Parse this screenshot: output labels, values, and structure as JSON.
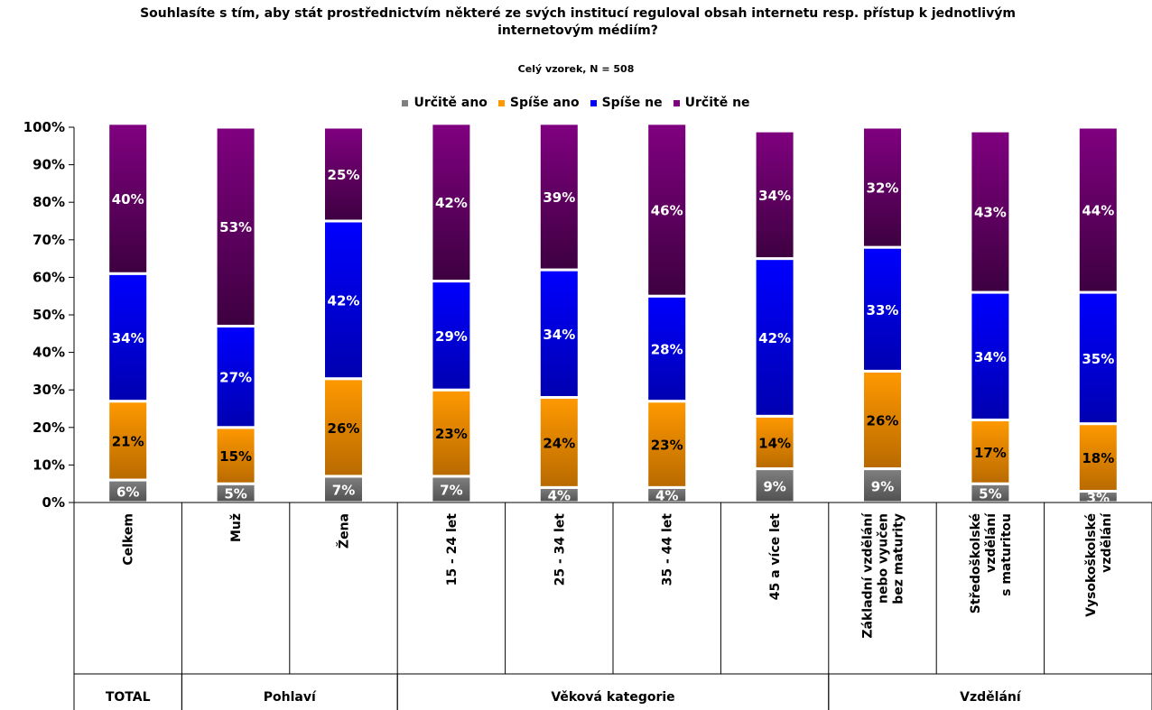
{
  "chart_data": {
    "type": "bar",
    "stacked": true,
    "title": "Souhlasíte s tím, aby stát prostřednictvím některé ze svých institucí reguloval obsah internetu resp. přístup k jednotlivým internetovým médiím?",
    "subtitle": "Celý vzorek, N = 508",
    "ylim": [
      0,
      100
    ],
    "yticks": [
      "0%",
      "10%",
      "20%",
      "30%",
      "40%",
      "50%",
      "60%",
      "70%",
      "80%",
      "90%",
      "100%"
    ],
    "legend_position": "top",
    "categories": [
      "Celkem",
      "Muž",
      "Žena",
      "15 - 24 let",
      "25 - 34 let",
      "35 - 44 let",
      "45 a více let",
      "Základní vzdělání nebo vyučen bez maturity",
      "Středoškolské vzdělání s maturitou",
      "Vysokoškolské vzdělání"
    ],
    "category_lines": [
      [
        "Celkem"
      ],
      [
        "Muž"
      ],
      [
        "Žena"
      ],
      [
        "15 - 24 let"
      ],
      [
        "25 - 34 let"
      ],
      [
        "35 - 44 let"
      ],
      [
        "45 a více let"
      ],
      [
        "Základní vzdělání",
        "nebo vyučen",
        "bez maturity"
      ],
      [
        "Středoškolské",
        "vzdělání",
        "s maturitou"
      ],
      [
        "Vysokoškolské",
        "vzdělání"
      ]
    ],
    "groups": [
      {
        "label": "TOTAL",
        "start": 0,
        "count": 1
      },
      {
        "label": "Pohlaví",
        "start": 1,
        "count": 2
      },
      {
        "label": "Věková kategorie",
        "start": 3,
        "count": 4
      },
      {
        "label": "Vzdělání",
        "start": 7,
        "count": 3
      }
    ],
    "series": [
      {
        "name": "Určitě ano",
        "color": "#808080",
        "color_dark": "#505050",
        "values": [
          6,
          5,
          7,
          7,
          4,
          4,
          9,
          9,
          5,
          3
        ]
      },
      {
        "name": "Spíše ano",
        "color": "#ff9900",
        "color_dark": "#b86a00",
        "values": [
          21,
          15,
          26,
          23,
          24,
          23,
          14,
          26,
          17,
          18
        ]
      },
      {
        "name": "Spíše ne",
        "color": "#0000ff",
        "color_dark": "#0000b0",
        "values": [
          34,
          27,
          42,
          29,
          34,
          28,
          42,
          33,
          34,
          35
        ]
      },
      {
        "name": "Určitě ne",
        "color": "#800080",
        "color_dark": "#3d0040",
        "values": [
          40,
          53,
          25,
          42,
          39,
          46,
          34,
          32,
          43,
          44
        ]
      }
    ],
    "label_colors": [
      "#ffffff",
      "#000000",
      "#ffffff",
      "#ffffff"
    ]
  }
}
